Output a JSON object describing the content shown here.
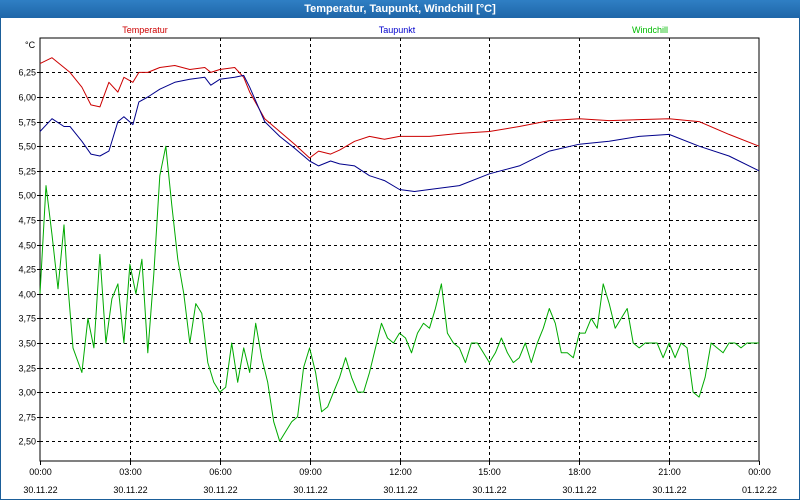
{
  "window": {
    "title": "Temperatur, Taupunkt, Windchill [°C]"
  },
  "chart_data": {
    "type": "line",
    "title": "Temperatur, Taupunkt, Windchill [°C]",
    "ylabel": "°C",
    "ylim": [
      2.3,
      6.6
    ],
    "yticks": [
      2.5,
      2.75,
      3.0,
      3.25,
      3.5,
      3.75,
      4.0,
      4.25,
      4.5,
      4.75,
      5.0,
      5.25,
      5.5,
      5.75,
      6.0,
      6.25
    ],
    "ytick_labels": [
      "2,50",
      "2,75",
      "3,00",
      "3,25",
      "3,50",
      "3,75",
      "4,00",
      "4,25",
      "4,50",
      "4,75",
      "5,00",
      "5,25",
      "5,50",
      "5,75",
      "6,00",
      "6,25"
    ],
    "xlim": [
      0,
      24
    ],
    "xticks": [
      0,
      3,
      6,
      9,
      12,
      15,
      18,
      21,
      24
    ],
    "xtick_times": [
      "00:00",
      "03:00",
      "06:00",
      "09:00",
      "12:00",
      "15:00",
      "18:00",
      "21:00",
      "00:00"
    ],
    "xtick_dates": [
      "30.11.22",
      "30.11.22",
      "30.11.22",
      "30.11.22",
      "30.11.22",
      "30.11.22",
      "30.11.22",
      "30.11.22",
      "01.12.22"
    ],
    "grid": true,
    "series": [
      {
        "name": "Temperatur",
        "color": "#cc0000",
        "x": [
          0,
          0.4,
          0.8,
          1.0,
          1.4,
          1.7,
          2.0,
          2.3,
          2.6,
          2.8,
          3.1,
          3.3,
          3.6,
          4.0,
          4.5,
          5.0,
          5.5,
          5.7,
          6.0,
          6.5,
          6.8,
          7.0,
          7.5,
          8.0,
          8.5,
          9.0,
          9.3,
          9.7,
          10.0,
          10.5,
          11.0,
          11.5,
          12.0,
          13.0,
          14.0,
          15.0,
          16.0,
          17.0,
          18.0,
          19.0,
          20.0,
          21.0,
          22.0,
          23.0,
          24.0
        ],
        "y": [
          6.34,
          6.4,
          6.3,
          6.25,
          6.1,
          5.92,
          5.9,
          6.15,
          6.05,
          6.2,
          6.15,
          6.25,
          6.25,
          6.3,
          6.32,
          6.28,
          6.3,
          6.25,
          6.28,
          6.3,
          6.2,
          6.05,
          5.78,
          5.65,
          5.52,
          5.38,
          5.45,
          5.42,
          5.46,
          5.55,
          5.6,
          5.57,
          5.6,
          5.6,
          5.63,
          5.65,
          5.7,
          5.76,
          5.78,
          5.76,
          5.77,
          5.78,
          5.75,
          5.62,
          5.5
        ]
      },
      {
        "name": "Taupunkt",
        "color": "#00008b",
        "x": [
          0,
          0.4,
          0.8,
          1.0,
          1.4,
          1.7,
          2.0,
          2.3,
          2.6,
          2.8,
          3.1,
          3.3,
          3.6,
          4.0,
          4.5,
          5.0,
          5.5,
          5.7,
          6.0,
          6.5,
          6.8,
          7.0,
          7.5,
          8.0,
          8.5,
          9.0,
          9.3,
          9.7,
          10.0,
          10.5,
          11.0,
          11.5,
          12.0,
          12.5,
          13.0,
          14.0,
          15.0,
          16.0,
          17.0,
          18.0,
          19.0,
          20.0,
          21.0,
          22.0,
          23.0,
          24.0
        ],
        "y": [
          5.65,
          5.78,
          5.7,
          5.7,
          5.55,
          5.42,
          5.4,
          5.45,
          5.75,
          5.8,
          5.72,
          5.95,
          6.0,
          6.08,
          6.15,
          6.18,
          6.2,
          6.12,
          6.18,
          6.2,
          6.22,
          6.1,
          5.75,
          5.6,
          5.48,
          5.35,
          5.3,
          5.35,
          5.32,
          5.3,
          5.2,
          5.15,
          5.06,
          5.04,
          5.06,
          5.1,
          5.22,
          5.3,
          5.45,
          5.52,
          5.55,
          5.6,
          5.62,
          5.5,
          5.4,
          5.25
        ]
      },
      {
        "name": "Windchill",
        "color": "#00aa00",
        "x": [
          0,
          0.2,
          0.4,
          0.6,
          0.8,
          0.9,
          1.1,
          1.4,
          1.6,
          1.8,
          2.0,
          2.2,
          2.4,
          2.6,
          2.8,
          3.0,
          3.2,
          3.4,
          3.6,
          3.8,
          4.0,
          4.2,
          4.4,
          4.6,
          4.8,
          5.0,
          5.2,
          5.4,
          5.6,
          5.8,
          6.0,
          6.2,
          6.4,
          6.6,
          6.8,
          7.0,
          7.2,
          7.4,
          7.6,
          7.8,
          8.0,
          8.2,
          8.4,
          8.6,
          8.8,
          9.0,
          9.2,
          9.4,
          9.6,
          9.8,
          10.0,
          10.2,
          10.4,
          10.6,
          10.8,
          11.0,
          11.2,
          11.4,
          11.6,
          11.8,
          12.0,
          12.2,
          12.4,
          12.6,
          12.8,
          13.0,
          13.2,
          13.4,
          13.6,
          13.8,
          14.0,
          14.2,
          14.4,
          14.6,
          14.8,
          15.0,
          15.2,
          15.4,
          15.6,
          15.8,
          16.0,
          16.2,
          16.4,
          16.6,
          16.8,
          17.0,
          17.2,
          17.4,
          17.6,
          17.8,
          18.0,
          18.2,
          18.4,
          18.6,
          18.8,
          19.0,
          19.2,
          19.4,
          19.6,
          19.8,
          20.0,
          20.2,
          20.4,
          20.6,
          20.8,
          21.0,
          21.2,
          21.4,
          21.6,
          21.8,
          22.0,
          22.2,
          22.4,
          22.6,
          22.8,
          23.0,
          23.2,
          23.4,
          23.6,
          23.8,
          24.0
        ],
        "y": [
          4.0,
          5.1,
          4.6,
          4.05,
          4.7,
          4.2,
          3.45,
          3.2,
          3.75,
          3.45,
          4.4,
          3.5,
          3.95,
          4.1,
          3.5,
          4.3,
          4.0,
          4.35,
          3.4,
          4.2,
          5.2,
          5.5,
          4.9,
          4.35,
          4.0,
          3.5,
          3.9,
          3.8,
          3.3,
          3.1,
          3.0,
          3.05,
          3.5,
          3.1,
          3.45,
          3.2,
          3.7,
          3.35,
          3.1,
          2.7,
          2.5,
          2.6,
          2.7,
          2.75,
          3.25,
          3.45,
          3.2,
          2.8,
          2.85,
          3.0,
          3.15,
          3.35,
          3.15,
          3.0,
          3.0,
          3.2,
          3.45,
          3.7,
          3.55,
          3.5,
          3.6,
          3.55,
          3.4,
          3.6,
          3.7,
          3.65,
          3.85,
          4.1,
          3.6,
          3.5,
          3.45,
          3.3,
          3.5,
          3.5,
          3.4,
          3.3,
          3.4,
          3.55,
          3.4,
          3.3,
          3.35,
          3.5,
          3.3,
          3.5,
          3.65,
          3.85,
          3.7,
          3.4,
          3.4,
          3.35,
          3.6,
          3.6,
          3.75,
          3.65,
          4.1,
          3.9,
          3.65,
          3.75,
          3.85,
          3.5,
          3.45,
          3.5,
          3.5,
          3.5,
          3.35,
          3.5,
          3.35,
          3.5,
          3.45,
          3.0,
          2.95,
          3.15,
          3.5,
          3.45,
          3.4,
          3.5,
          3.5,
          3.45,
          3.5,
          3.5,
          3.5
        ]
      }
    ],
    "legend": [
      {
        "label": "Temperatur",
        "color": "#cc0000"
      },
      {
        "label": "Taupunkt",
        "color": "#0000cc"
      },
      {
        "label": "Windchill",
        "color": "#00bb00"
      }
    ]
  }
}
